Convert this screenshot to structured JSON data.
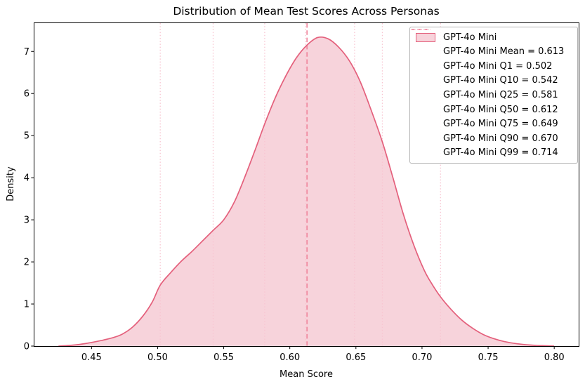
{
  "colors": {
    "curve": "#e4607c",
    "fill": "rgba(228,96,124,0.28)",
    "mean_line": "#ef849b",
    "quantile_line": "#f8c5d1",
    "spine": "#000000",
    "text": "#000000",
    "legend_border": "#b5b5b5",
    "legend_bg": "rgba(255,255,255,0.9)"
  },
  "chart_data": {
    "type": "area",
    "subtype": "kde-density",
    "title": "Distribution of Mean Test Scores Across Personas",
    "xlabel": "Mean Score",
    "ylabel": "Density",
    "xlim": [
      0.4068,
      0.8185
    ],
    "ylim": [
      0,
      7.68
    ],
    "grid": false,
    "legend_position": "upper right",
    "xticks": {
      "values": [
        0.45,
        0.5,
        0.55,
        0.6,
        0.65,
        0.7,
        0.75,
        0.8
      ],
      "labels": [
        "0.45",
        "0.50",
        "0.55",
        "0.60",
        "0.65",
        "0.70",
        "0.75",
        "0.80"
      ]
    },
    "yticks": {
      "values": [
        0,
        1,
        2,
        3,
        4,
        5,
        6,
        7
      ],
      "labels": [
        "0",
        "1",
        "2",
        "3",
        "4",
        "5",
        "6",
        "7"
      ]
    },
    "series": [
      {
        "name": "GPT-4o Mini",
        "peak": {
          "x": 0.621,
          "density": 7.33
        },
        "points": [
          [
            0.425,
            0.0
          ],
          [
            0.433,
            0.015
          ],
          [
            0.441,
            0.04
          ],
          [
            0.449,
            0.08
          ],
          [
            0.457,
            0.13
          ],
          [
            0.465,
            0.19
          ],
          [
            0.473,
            0.28
          ],
          [
            0.481,
            0.45
          ],
          [
            0.489,
            0.72
          ],
          [
            0.496,
            1.05
          ],
          [
            0.502,
            1.45
          ],
          [
            0.51,
            1.75
          ],
          [
            0.518,
            2.02
          ],
          [
            0.526,
            2.25
          ],
          [
            0.534,
            2.5
          ],
          [
            0.542,
            2.75
          ],
          [
            0.55,
            3.0
          ],
          [
            0.558,
            3.42
          ],
          [
            0.566,
            4.02
          ],
          [
            0.574,
            4.68
          ],
          [
            0.581,
            5.28
          ],
          [
            0.589,
            5.9
          ],
          [
            0.597,
            6.42
          ],
          [
            0.605,
            6.85
          ],
          [
            0.613,
            7.15
          ],
          [
            0.621,
            7.33
          ],
          [
            0.629,
            7.3
          ],
          [
            0.637,
            7.1
          ],
          [
            0.645,
            6.78
          ],
          [
            0.653,
            6.3
          ],
          [
            0.661,
            5.65
          ],
          [
            0.67,
            4.85
          ],
          [
            0.678,
            4.0
          ],
          [
            0.686,
            3.12
          ],
          [
            0.694,
            2.38
          ],
          [
            0.702,
            1.78
          ],
          [
            0.708,
            1.45
          ],
          [
            0.714,
            1.17
          ],
          [
            0.722,
            0.87
          ],
          [
            0.73,
            0.62
          ],
          [
            0.738,
            0.43
          ],
          [
            0.746,
            0.28
          ],
          [
            0.754,
            0.18
          ],
          [
            0.762,
            0.11
          ],
          [
            0.772,
            0.055
          ],
          [
            0.782,
            0.025
          ],
          [
            0.791,
            0.01
          ],
          [
            0.8,
            0.0
          ]
        ]
      }
    ],
    "stats": {
      "mean": 0.613,
      "q1": 0.502,
      "q10": 0.542,
      "q25": 0.581,
      "q50": 0.612,
      "q75": 0.649,
      "q90": 0.67,
      "q99": 0.714
    },
    "vlines": [
      {
        "x": 0.502,
        "style": "dotted",
        "name": "q1-line"
      },
      {
        "x": 0.542,
        "style": "dotted",
        "name": "q10-line"
      },
      {
        "x": 0.581,
        "style": "dotted",
        "name": "q25-line"
      },
      {
        "x": 0.612,
        "style": "dotted",
        "name": "q50-line"
      },
      {
        "x": 0.649,
        "style": "dotted",
        "name": "q75-line"
      },
      {
        "x": 0.67,
        "style": "dotted",
        "name": "q90-line"
      },
      {
        "x": 0.714,
        "style": "dotted",
        "name": "q99-line"
      },
      {
        "x": 0.613,
        "style": "dashed",
        "name": "mean-line"
      }
    ],
    "legend": [
      {
        "label": "GPT-4o Mini",
        "glyph": "patch"
      },
      {
        "label": "GPT-4o Mini Mean = 0.613",
        "glyph": "dashed"
      },
      {
        "label": "GPT-4o Mini Q1 = 0.502",
        "glyph": "dotted"
      },
      {
        "label": "GPT-4o Mini Q10 = 0.542",
        "glyph": "dotted"
      },
      {
        "label": "GPT-4o Mini Q25 = 0.581",
        "glyph": "dotted"
      },
      {
        "label": "GPT-4o Mini Q50 = 0.612",
        "glyph": "dotted"
      },
      {
        "label": "GPT-4o Mini Q75 = 0.649",
        "glyph": "dotted"
      },
      {
        "label": "GPT-4o Mini Q90 = 0.670",
        "glyph": "dotted"
      },
      {
        "label": "GPT-4o Mini Q99 = 0.714",
        "glyph": "dotted"
      }
    ]
  }
}
